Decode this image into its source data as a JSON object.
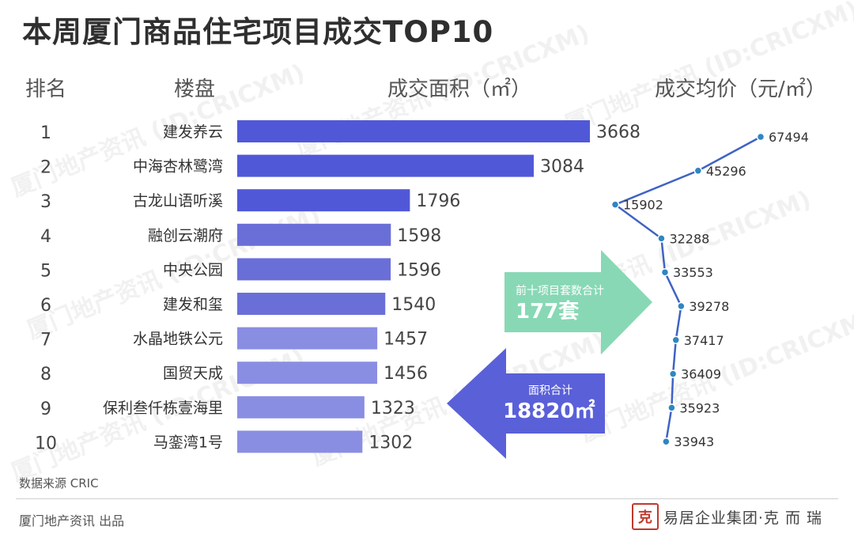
{
  "title": "本周厦门商品住宅项目成交TOP10",
  "headers": {
    "rank": "排名",
    "project": "楼盘",
    "area": "成交面积（㎡）",
    "price": "成交均价（元/㎡）"
  },
  "watermark": "厦门地产资讯 (ID:CRICXM)",
  "callouts": {
    "units_label": "前十项目套数合计",
    "units_value": "177套",
    "area_label": "面积合计",
    "area_value": "18820㎡"
  },
  "footer": {
    "source": "数据来源 CRIC",
    "publisher": "厦门地产资讯 出品",
    "brand_seal": "克",
    "brand_text": "易居企业集团·克 而 瑞"
  },
  "colors": {
    "bar_dark": "#5058d8",
    "bar_mid": "#6a6fd8",
    "bar_light": "#8a8ee3",
    "line": "#3f63c4",
    "marker": "#2e86c1",
    "green_arrow": "#88d8b5",
    "blue_arrow": "#5a60d8"
  },
  "chart_data": [
    {
      "type": "bar",
      "orientation": "horizontal",
      "title": "",
      "xlabel": "成交面积（㎡）",
      "ylabel": "楼盘",
      "ranks": [
        "1",
        "2",
        "3",
        "4",
        "5",
        "6",
        "7",
        "8",
        "9",
        "10"
      ],
      "categories": [
        "建发养云",
        "中海杏林鹭湾",
        "古龙山语听溪",
        "融创云潮府",
        "中央公园",
        "建发和玺",
        "水晶地铁公元",
        "国贸天成",
        "保利叁仟栋壹海里",
        "马銮湾1号"
      ],
      "values": [
        3668,
        3084,
        1796,
        1598,
        1596,
        1540,
        1457,
        1456,
        1323,
        1302
      ],
      "xlim": [
        0,
        3668
      ]
    },
    {
      "type": "line",
      "title": "",
      "ylabel": "成交均价（元/㎡）",
      "categories": [
        "建发养云",
        "中海杏林鹭湾",
        "古龙山语听溪",
        "融创云潮府",
        "中央公园",
        "建发和玺",
        "水晶地铁公元",
        "国贸天成",
        "保利叁仟栋壹海里",
        "马銮湾1号"
      ],
      "values": [
        67494,
        45296,
        15902,
        32288,
        33553,
        39278,
        37417,
        36409,
        35923,
        33943
      ],
      "xlim": [
        15902,
        67494
      ]
    }
  ]
}
